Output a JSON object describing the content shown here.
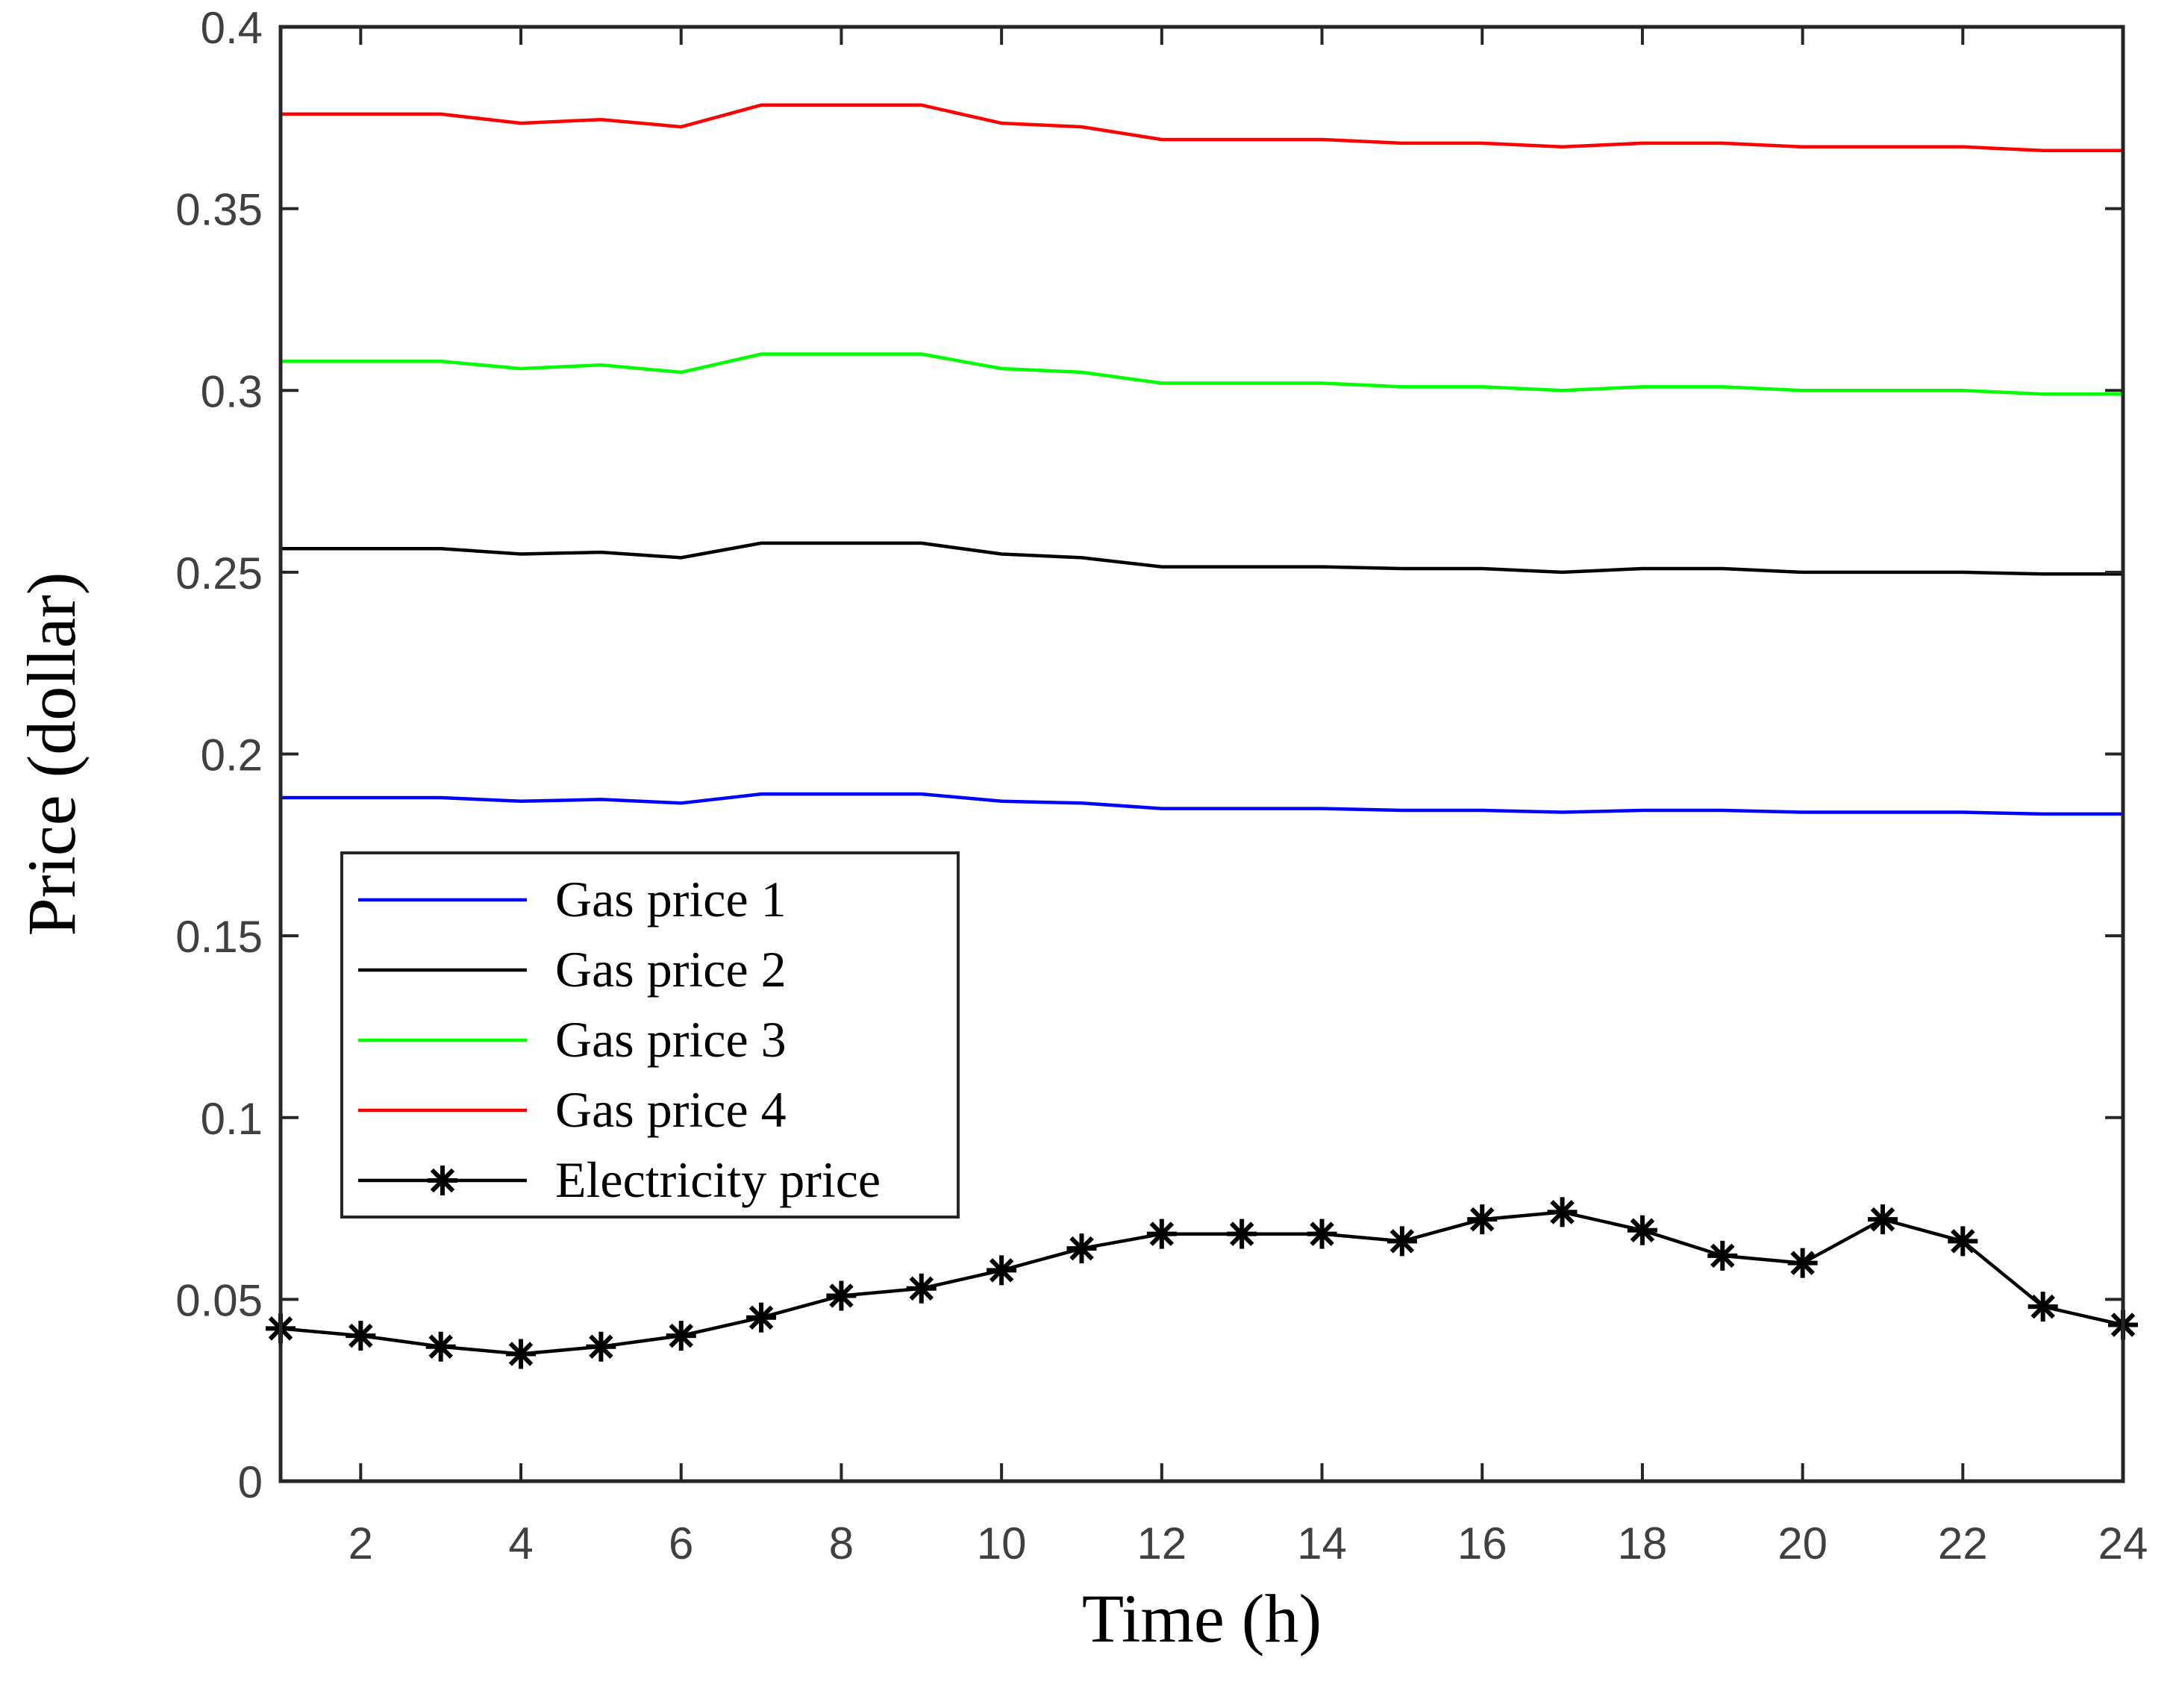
{
  "chart_data": {
    "type": "line",
    "title": "",
    "xlabel": "Time (h)",
    "ylabel": "Price (dollar)",
    "xlim": [
      1,
      24
    ],
    "ylim": [
      0,
      0.4
    ],
    "xticks": [
      2,
      4,
      6,
      8,
      10,
      12,
      14,
      16,
      18,
      20,
      22,
      24
    ],
    "xtick_labels": [
      "2",
      "4",
      "6",
      "8",
      "10",
      "12",
      "14",
      "16",
      "18",
      "20",
      "22",
      "24"
    ],
    "yticks": [
      0,
      0.05,
      0.1,
      0.15,
      0.2,
      0.25,
      0.3,
      0.35,
      0.4
    ],
    "ytick_labels": [
      "0",
      "0.05",
      "0.1",
      "0.15",
      "0.2",
      "0.25",
      "0.3",
      "0.35",
      "0.4"
    ],
    "grid": false,
    "legend_position": "lower-left",
    "x": [
      1,
      2,
      3,
      4,
      5,
      6,
      7,
      8,
      9,
      10,
      11,
      12,
      13,
      14,
      15,
      16,
      17,
      18,
      19,
      20,
      21,
      22,
      23,
      24
    ],
    "series": [
      {
        "name": "Gas price 1",
        "color": "#0000ff",
        "marker": "none",
        "values": [
          0.188,
          0.188,
          0.188,
          0.187,
          0.1875,
          0.1865,
          0.189,
          0.189,
          0.189,
          0.187,
          0.1865,
          0.185,
          0.185,
          0.185,
          0.1845,
          0.1845,
          0.184,
          0.1845,
          0.1845,
          0.184,
          0.184,
          0.184,
          0.1835,
          0.1835
        ]
      },
      {
        "name": "Gas price 2",
        "color": "#000000",
        "marker": "none",
        "values": [
          0.2565,
          0.2565,
          0.2565,
          0.255,
          0.2555,
          0.254,
          0.258,
          0.258,
          0.258,
          0.255,
          0.254,
          0.2515,
          0.2515,
          0.2515,
          0.251,
          0.251,
          0.25,
          0.251,
          0.251,
          0.25,
          0.25,
          0.25,
          0.2495,
          0.2495
        ]
      },
      {
        "name": "Gas price 3",
        "color": "#00ff00",
        "marker": "none",
        "values": [
          0.308,
          0.308,
          0.308,
          0.306,
          0.307,
          0.305,
          0.31,
          0.31,
          0.31,
          0.306,
          0.305,
          0.302,
          0.302,
          0.302,
          0.301,
          0.301,
          0.3,
          0.301,
          0.301,
          0.3,
          0.3,
          0.3,
          0.299,
          0.299
        ]
      },
      {
        "name": "Gas price 4",
        "color": "#ff0000",
        "marker": "none",
        "values": [
          0.376,
          0.376,
          0.376,
          0.3735,
          0.3745,
          0.3725,
          0.3785,
          0.3785,
          0.3785,
          0.3735,
          0.3725,
          0.369,
          0.369,
          0.369,
          0.368,
          0.368,
          0.367,
          0.368,
          0.368,
          0.367,
          0.367,
          0.367,
          0.366,
          0.366
        ]
      },
      {
        "name": "Electricity price",
        "color": "#000000",
        "marker": "asterisk",
        "values": [
          0.042,
          0.04,
          0.037,
          0.035,
          0.037,
          0.04,
          0.045,
          0.051,
          0.053,
          0.058,
          0.064,
          0.068,
          0.068,
          0.068,
          0.066,
          0.072,
          0.074,
          0.069,
          0.062,
          0.06,
          0.072,
          0.066,
          0.048,
          0.043
        ]
      }
    ]
  }
}
